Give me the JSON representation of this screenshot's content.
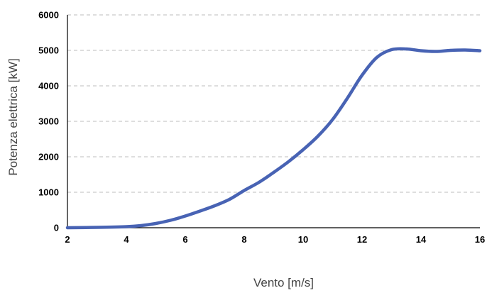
{
  "chart_data": {
    "type": "line",
    "xlabel": "Vento [m/s]",
    "ylabel": "Potenza elettrica [kW]",
    "xlim": [
      2,
      16
    ],
    "ylim": [
      0,
      6000
    ],
    "xticks": [
      "2",
      "4",
      "6",
      "8",
      "10",
      "12",
      "14",
      "16"
    ],
    "yticks": [
      "0",
      "1000",
      "2000",
      "3000",
      "4000",
      "5000",
      "6000"
    ],
    "grid": "horizontal dashed",
    "line_color": "#4863b4",
    "series": [
      {
        "x": [
          2,
          3,
          4,
          4.5,
          5,
          5.5,
          6,
          6.5,
          7,
          7.5,
          8,
          8.5,
          9,
          9.5,
          10,
          10.5,
          11,
          11.5,
          12,
          12.5,
          13,
          13.5,
          14,
          14.5,
          15,
          15.5,
          16
        ],
        "y": [
          0,
          10,
          30,
          60,
          120,
          210,
          330,
          470,
          620,
          800,
          1050,
          1280,
          1560,
          1860,
          2200,
          2580,
          3050,
          3650,
          4300,
          4800,
          5020,
          5040,
          4990,
          4970,
          5000,
          5010,
          4990
        ]
      }
    ]
  }
}
